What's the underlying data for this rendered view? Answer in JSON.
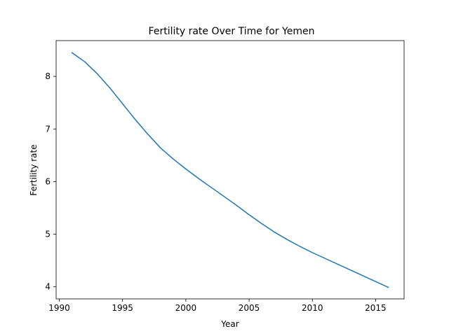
{
  "chart_data": {
    "type": "line",
    "title": "Fertility rate Over Time for Yemen",
    "xlabel": "Year",
    "ylabel": "Fertility rate",
    "xlim": [
      1989.75,
      2017.25
    ],
    "ylim": [
      3.77,
      8.68
    ],
    "xticks": [
      1990,
      1995,
      2000,
      2005,
      2010,
      2015
    ],
    "yticks": [
      4,
      5,
      6,
      7,
      8
    ],
    "grid": false,
    "series": [
      {
        "color": "#1f77b4",
        "x": [
          1991,
          1992,
          1993,
          1994,
          1995,
          1996,
          1997,
          1998,
          1999,
          2000,
          2001,
          2002,
          2003,
          2004,
          2005,
          2006,
          2007,
          2008,
          2009,
          2010,
          2011,
          2012,
          2013,
          2014,
          2015,
          2016
        ],
        "y": [
          8.45,
          8.28,
          8.05,
          7.78,
          7.48,
          7.18,
          6.9,
          6.64,
          6.43,
          6.24,
          6.06,
          5.89,
          5.72,
          5.55,
          5.37,
          5.2,
          5.04,
          4.9,
          4.77,
          4.65,
          4.54,
          4.43,
          4.32,
          4.21,
          4.1,
          3.99
        ]
      }
    ]
  }
}
